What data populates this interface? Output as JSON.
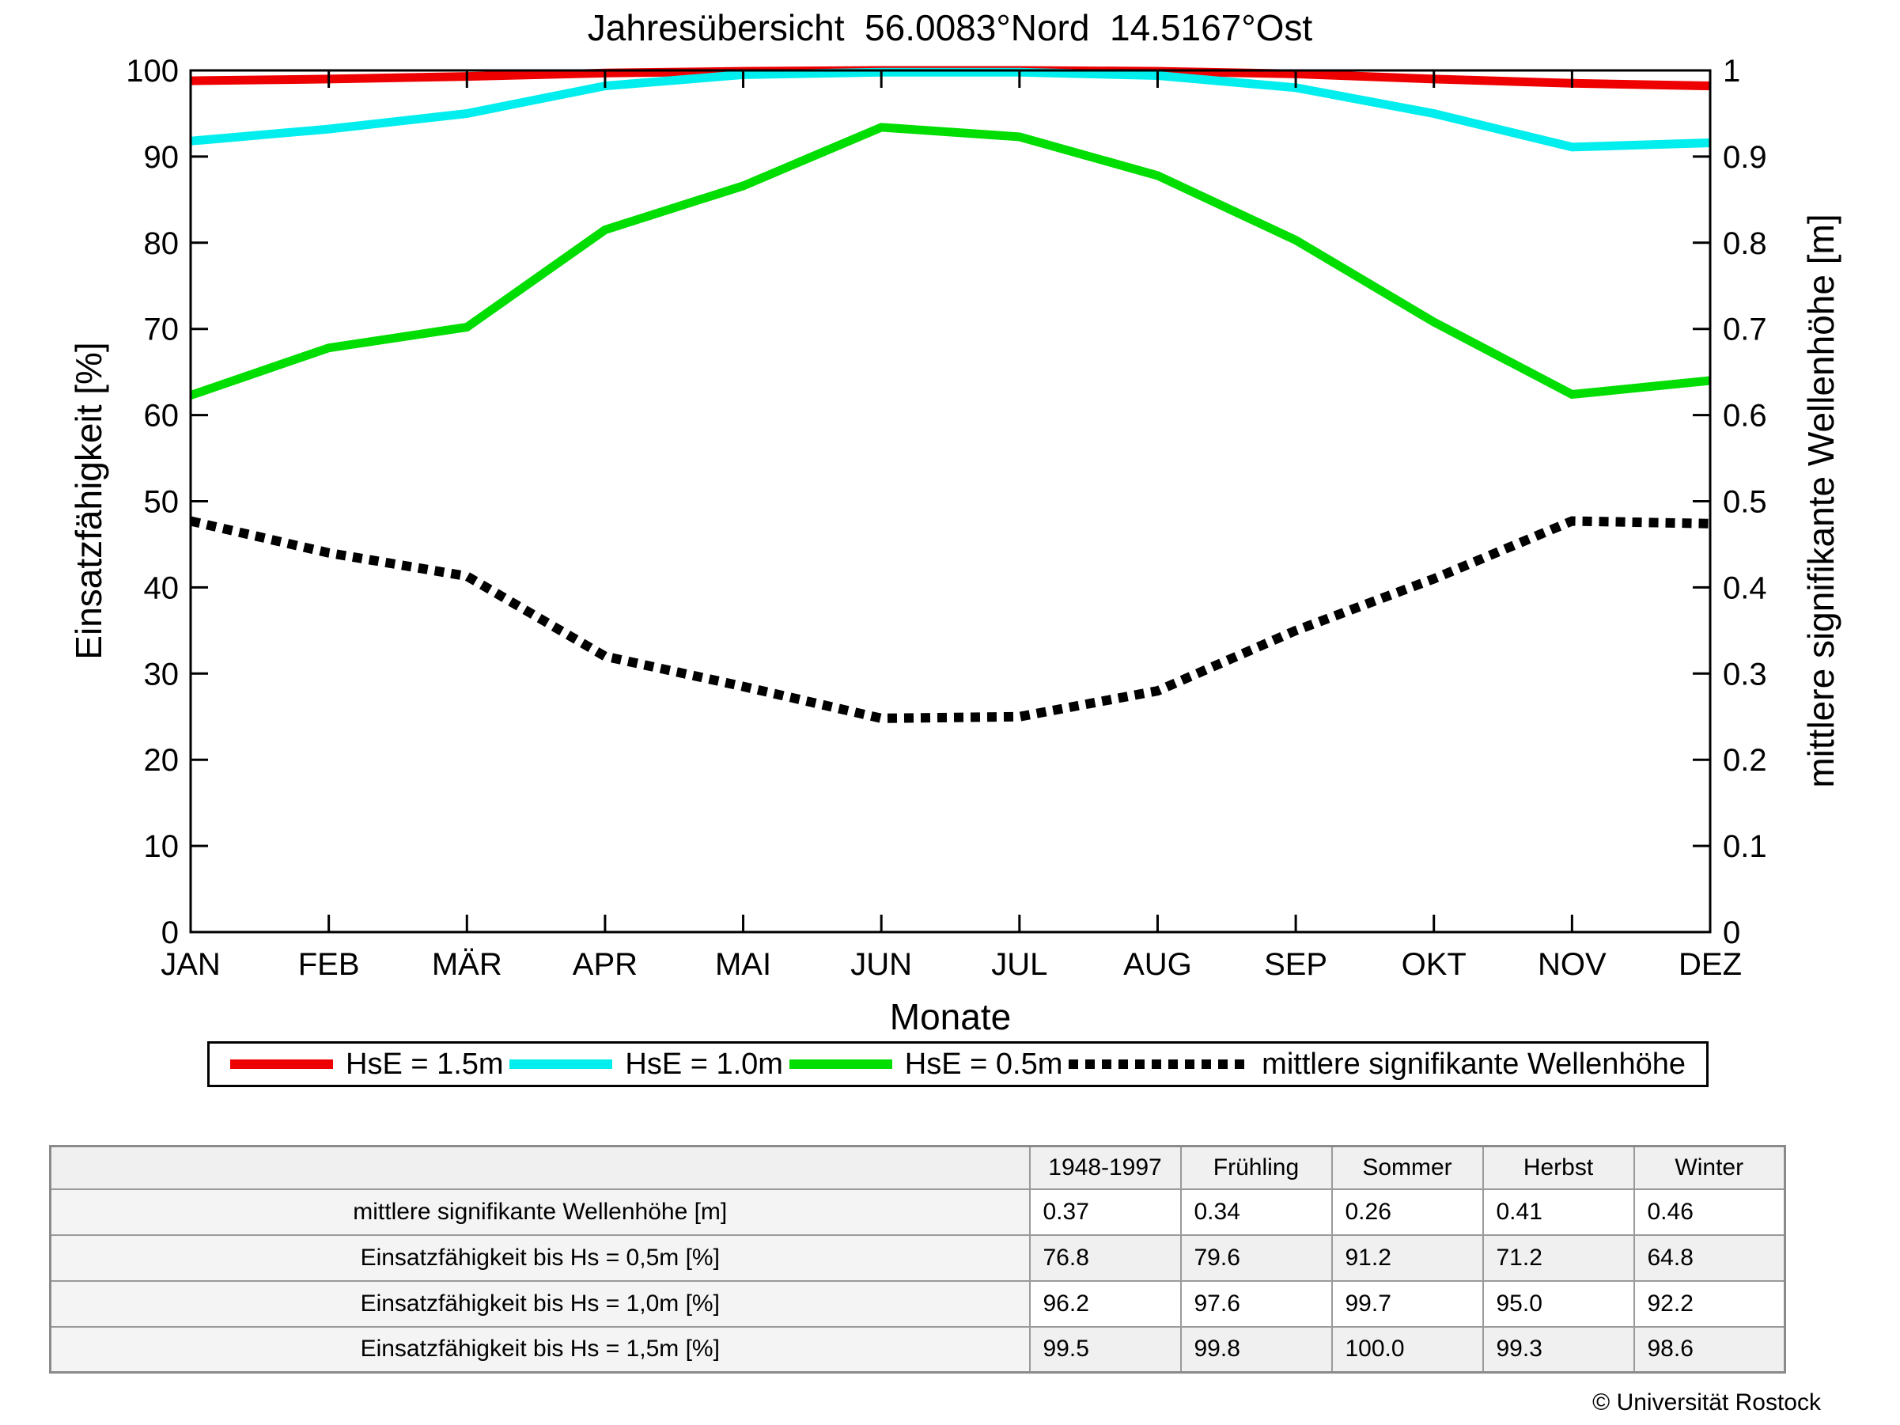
{
  "title": "Jahresübersicht  56.0083°Nord  14.5167°Ost",
  "chart_data": {
    "type": "line",
    "categories": [
      "JAN",
      "FEB",
      "MÄR",
      "APR",
      "MAI",
      "JUN",
      "JUL",
      "AUG",
      "SEP",
      "OKT",
      "NOV",
      "DEZ"
    ],
    "xlabel": "Monate",
    "ylabel_left": "Einsatzfähigkeit [%]",
    "ylabel_right": "mittlere signifikante Wellenhöhe [m]",
    "ylim_left": [
      0,
      100
    ],
    "ylim_right": [
      0,
      1
    ],
    "y_ticks_left": [
      "0",
      "10",
      "20",
      "30",
      "40",
      "50",
      "60",
      "70",
      "80",
      "90",
      "100"
    ],
    "y_ticks_right": [
      "0",
      "0.1",
      "0.2",
      "0.3",
      "0.4",
      "0.5",
      "0.6",
      "0.7",
      "0.8",
      "0.9",
      "1"
    ],
    "grid": false,
    "legend_position": "bottom",
    "series": [
      {
        "name": "HsE = 1.5m",
        "axis": "left",
        "style": "solid",
        "color": "#ee0000",
        "values": [
          98.8,
          99.0,
          99.3,
          99.7,
          99.9,
          100,
          100,
          99.9,
          99.6,
          99.0,
          98.5,
          98.2
        ]
      },
      {
        "name": "HsE = 1.0m",
        "axis": "left",
        "style": "solid",
        "color": "#00eeee",
        "values": [
          91.8,
          93.2,
          95.0,
          98.2,
          99.5,
          99.8,
          99.8,
          99.4,
          98.0,
          95.0,
          91.1,
          91.6
        ]
      },
      {
        "name": "HsE = 0.5m",
        "axis": "left",
        "style": "solid",
        "color": "#00dd00",
        "values": [
          62.3,
          67.8,
          70.2,
          81.5,
          86.6,
          93.4,
          92.3,
          87.8,
          80.3,
          70.8,
          62.4,
          64.0
        ]
      },
      {
        "name": "mittlere signifikante Wellenhöhe",
        "axis": "right",
        "style": "dotted",
        "color": "#000000",
        "values": [
          0.477,
          0.44,
          0.413,
          0.32,
          0.285,
          0.248,
          0.25,
          0.28,
          0.35,
          0.41,
          0.477,
          0.474
        ]
      }
    ]
  },
  "table": {
    "column_headers": [
      "",
      "1948-1997",
      "Frühling",
      "Sommer",
      "Herbst",
      "Winter"
    ],
    "rows": [
      {
        "label": "mittlere signifikante Wellenhöhe [m]",
        "values": [
          "0.37",
          "0.34",
          "0.26",
          "0.41",
          "0.46"
        ]
      },
      {
        "label": "Einsatzfähigkeit bis Hs = 0,5m [%]",
        "values": [
          "76.8",
          "79.6",
          "91.2",
          "71.2",
          "64.8"
        ]
      },
      {
        "label": "Einsatzfähigkeit bis Hs = 1,0m [%]",
        "values": [
          "96.2",
          "97.6",
          "99.7",
          "95.0",
          "92.2"
        ]
      },
      {
        "label": "Einsatzfähigkeit bis Hs = 1,5m [%]",
        "values": [
          "99.5",
          "99.8",
          "100.0",
          "99.3",
          "98.6"
        ]
      }
    ]
  },
  "footer": {
    "copyright": "© Universität Rostock"
  }
}
